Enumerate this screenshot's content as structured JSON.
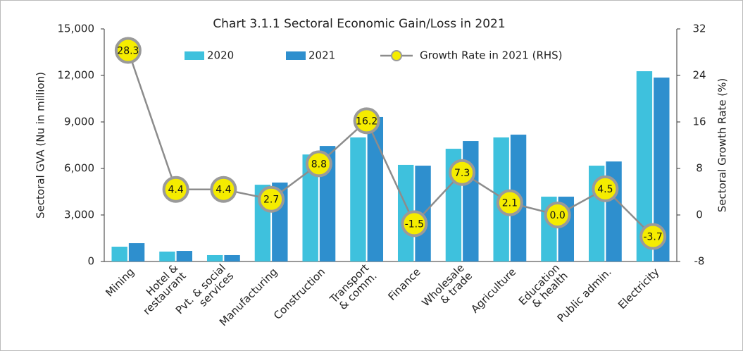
{
  "chart_data": {
    "type": "bar-line",
    "title": "Chart 3.1.1 Sectoral Economic Gain/Loss in 2021",
    "ylabel": "Sectoral GVA (Nu in million)",
    "y2label": "Sectoral Growth Rate (%)",
    "categories": [
      "Mining",
      "Hotel &\nrestaurant",
      "Pvt. & social\nservices",
      "Manufacturing",
      "Construction",
      "Transport\n& comm.",
      "Finance",
      "Wholesale\n& trade",
      "Agriculture",
      "Education\n& health",
      "Public admin.",
      "Electricity"
    ],
    "series": [
      {
        "name": "2020",
        "color": "#3ec1dd",
        "type": "bar",
        "values": [
          955,
          640,
          410,
          4950,
          6900,
          8000,
          6230,
          7270,
          8000,
          4180,
          6180,
          12270
        ]
      },
      {
        "name": "2021",
        "color": "#2e8fce",
        "type": "bar",
        "values": [
          1180,
          680,
          410,
          5090,
          7450,
          9320,
          6180,
          7770,
          8180,
          4180,
          6450,
          11860
        ]
      },
      {
        "name": "Growth Rate in 2021 (RHS)",
        "color": "#8c8c8c",
        "type": "line",
        "axis": "y2",
        "values": [
          28.3,
          4.4,
          4.4,
          2.7,
          8.8,
          16.2,
          -1.5,
          7.3,
          2.1,
          0.0,
          4.5,
          -3.7
        ],
        "value_labels": [
          "28.3",
          "4.4",
          "4.4",
          "2.7",
          "8.8",
          "16.2",
          "-1.5",
          "7.3",
          "2.1",
          "0.0",
          "4.5",
          "-3.7"
        ]
      }
    ],
    "ylim": [
      0,
      15000
    ],
    "yticks": [
      0,
      {
        "value": 3000,
        "label": "3,000"
      },
      {
        "value": 6000,
        "label": "6,000"
      },
      {
        "value": 9000,
        "label": "9,000"
      },
      {
        "value": 12000,
        "label": "12,000"
      },
      {
        "value": 15000,
        "label": "15,000"
      }
    ],
    "y2lim": [
      -8,
      32
    ],
    "y2ticks": [
      -8,
      0,
      8,
      16,
      24,
      32
    ]
  }
}
